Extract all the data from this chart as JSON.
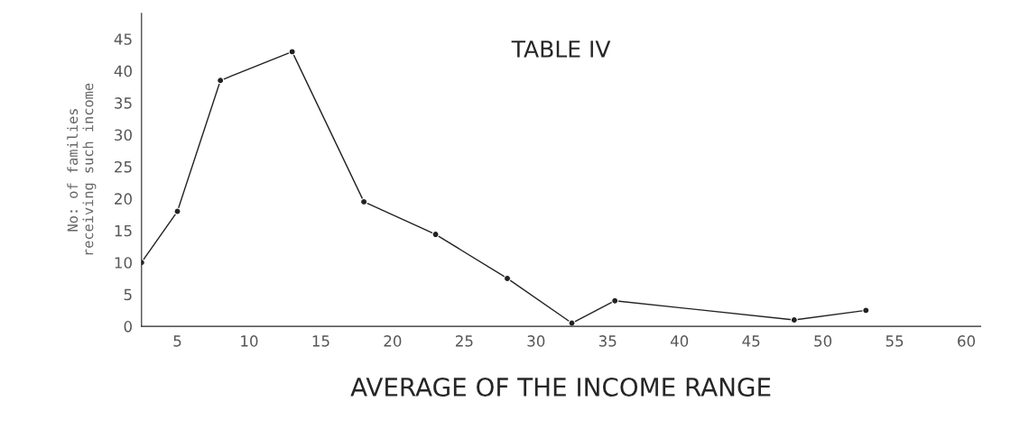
{
  "chart_data": {
    "type": "line",
    "title": "TABLE IV",
    "xlabel": "AVERAGE OF THE INCOME RANGE",
    "ylabel": "No: of families\nreceiving such income",
    "x": [
      2.5,
      5,
      8,
      13,
      18,
      23,
      28,
      32.5,
      35.5,
      48,
      53
    ],
    "values": [
      10,
      18,
      38.5,
      43,
      19.5,
      14.4,
      7.5,
      0.5,
      4,
      1,
      2.5
    ],
    "color": "#222222",
    "marker": "circle",
    "line_style": "solid",
    "xlim": [
      2.5,
      61
    ],
    "xticks": [
      5,
      10,
      15,
      20,
      25,
      30,
      35,
      40,
      45,
      50,
      55,
      60
    ],
    "ylim": [
      0,
      49
    ],
    "yticks": [
      0,
      5,
      10,
      15,
      20,
      25,
      30,
      35,
      40,
      45
    ],
    "grid": false
  }
}
